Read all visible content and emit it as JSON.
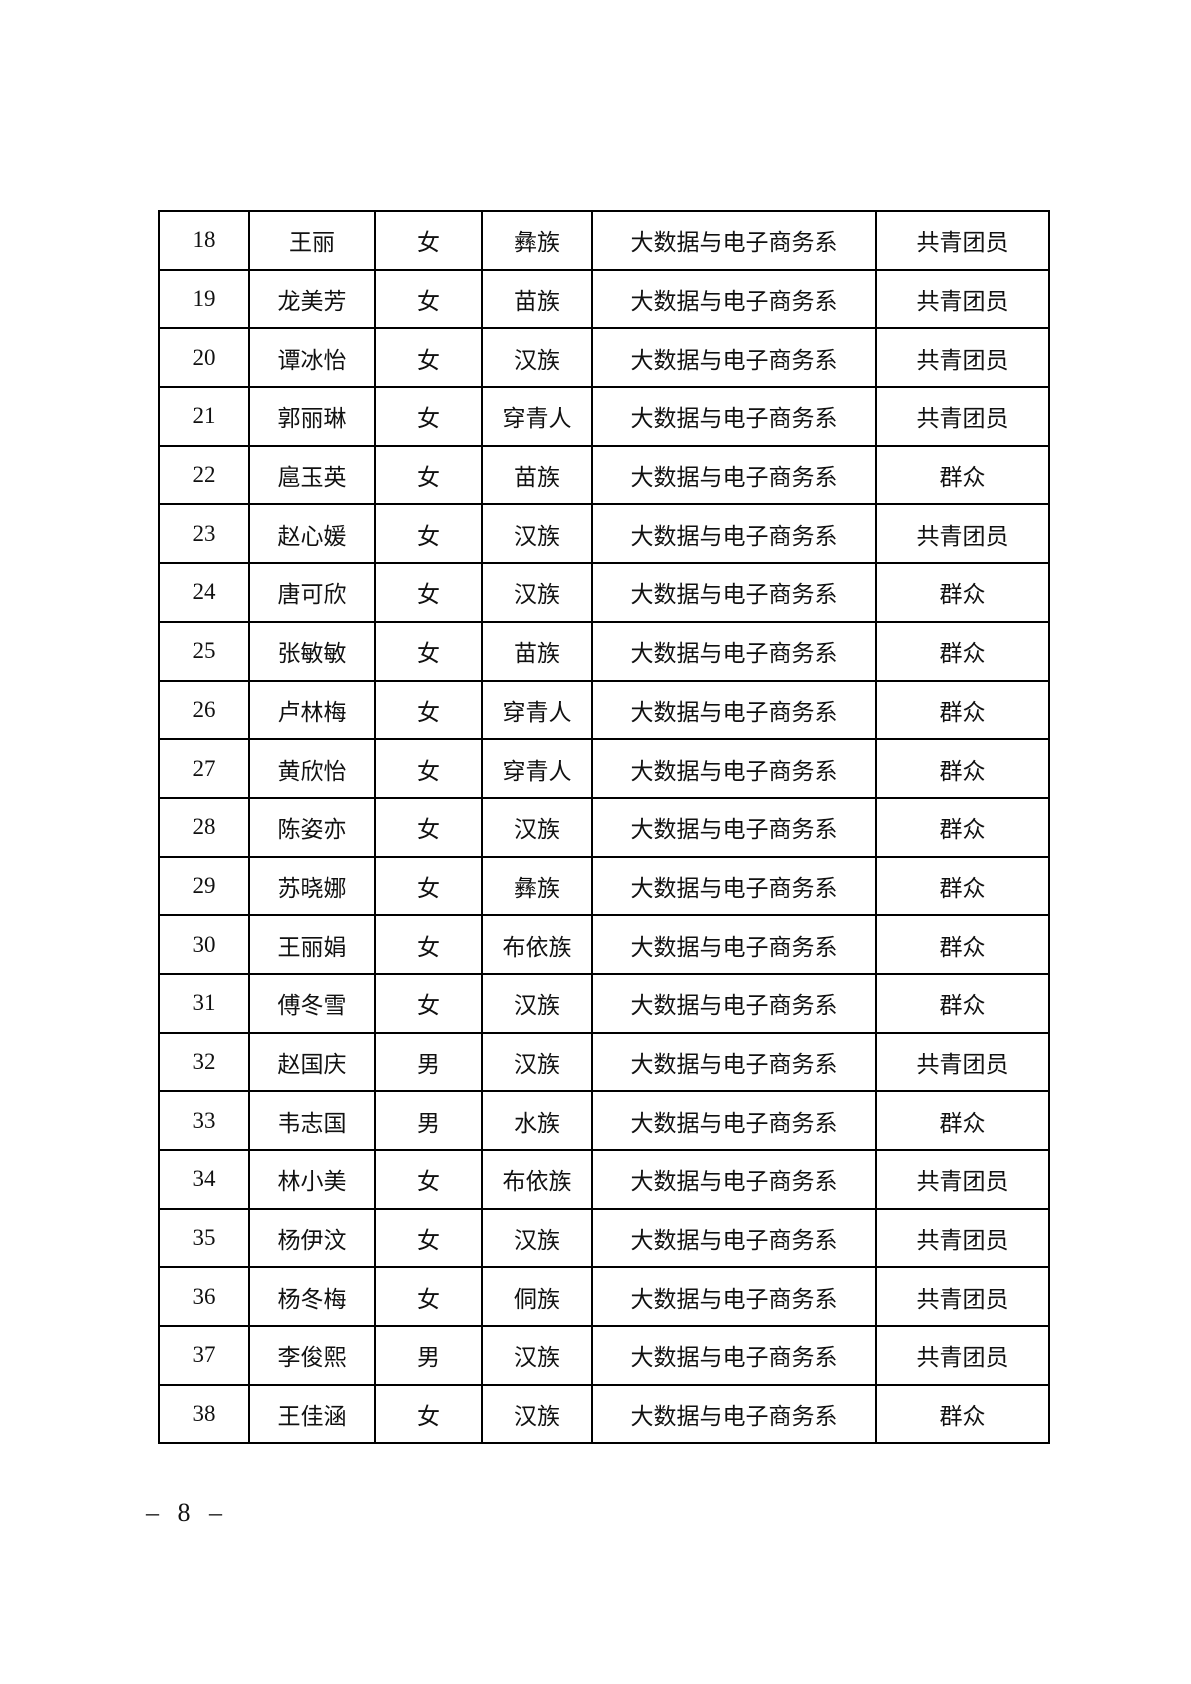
{
  "document": {
    "footer": {
      "page_number": "– 8 –"
    },
    "table": {
      "rows": [
        {
          "number": "18",
          "name": "王丽",
          "gender": "女",
          "ethnicity": "彝族",
          "department": "大数据与电子商务系",
          "political_status": "共青团员"
        },
        {
          "number": "19",
          "name": "龙美芳",
          "gender": "女",
          "ethnicity": "苗族",
          "department": "大数据与电子商务系",
          "political_status": "共青团员"
        },
        {
          "number": "20",
          "name": "谭冰怡",
          "gender": "女",
          "ethnicity": "汉族",
          "department": "大数据与电子商务系",
          "political_status": "共青团员"
        },
        {
          "number": "21",
          "name": "郭丽琳",
          "gender": "女",
          "ethnicity": "穿青人",
          "department": "大数据与电子商务系",
          "political_status": "共青团员"
        },
        {
          "number": "22",
          "name": "扈玉英",
          "gender": "女",
          "ethnicity": "苗族",
          "department": "大数据与电子商务系",
          "political_status": "群众"
        },
        {
          "number": "23",
          "name": "赵心媛",
          "gender": "女",
          "ethnicity": "汉族",
          "department": "大数据与电子商务系",
          "political_status": "共青团员"
        },
        {
          "number": "24",
          "name": "唐可欣",
          "gender": "女",
          "ethnicity": "汉族",
          "department": "大数据与电子商务系",
          "political_status": "群众"
        },
        {
          "number": "25",
          "name": "张敏敏",
          "gender": "女",
          "ethnicity": "苗族",
          "department": "大数据与电子商务系",
          "political_status": "群众"
        },
        {
          "number": "26",
          "name": "卢林梅",
          "gender": "女",
          "ethnicity": "穿青人",
          "department": "大数据与电子商务系",
          "political_status": "群众"
        },
        {
          "number": "27",
          "name": "黄欣怡",
          "gender": "女",
          "ethnicity": "穿青人",
          "department": "大数据与电子商务系",
          "political_status": "群众"
        },
        {
          "number": "28",
          "name": "陈姿亦",
          "gender": "女",
          "ethnicity": "汉族",
          "department": "大数据与电子商务系",
          "political_status": "群众"
        },
        {
          "number": "29",
          "name": "苏晓娜",
          "gender": "女",
          "ethnicity": "彝族",
          "department": "大数据与电子商务系",
          "political_status": "群众"
        },
        {
          "number": "30",
          "name": "王丽娟",
          "gender": "女",
          "ethnicity": "布依族",
          "department": "大数据与电子商务系",
          "political_status": "群众"
        },
        {
          "number": "31",
          "name": "傅冬雪",
          "gender": "女",
          "ethnicity": "汉族",
          "department": "大数据与电子商务系",
          "political_status": "群众"
        },
        {
          "number": "32",
          "name": "赵国庆",
          "gender": "男",
          "ethnicity": "汉族",
          "department": "大数据与电子商务系",
          "political_status": "共青团员"
        },
        {
          "number": "33",
          "name": "韦志国",
          "gender": "男",
          "ethnicity": "水族",
          "department": "大数据与电子商务系",
          "political_status": "群众"
        },
        {
          "number": "34",
          "name": "林小美",
          "gender": "女",
          "ethnicity": "布依族",
          "department": "大数据与电子商务系",
          "political_status": "共青团员"
        },
        {
          "number": "35",
          "name": "杨伊汶",
          "gender": "女",
          "ethnicity": "汉族",
          "department": "大数据与电子商务系",
          "political_status": "共青团员"
        },
        {
          "number": "36",
          "name": "杨冬梅",
          "gender": "女",
          "ethnicity": "侗族",
          "department": "大数据与电子商务系",
          "political_status": "共青团员"
        },
        {
          "number": "37",
          "name": "李俊熙",
          "gender": "男",
          "ethnicity": "汉族",
          "department": "大数据与电子商务系",
          "political_status": "共青团员"
        },
        {
          "number": "38",
          "name": "王佳涵",
          "gender": "女",
          "ethnicity": "汉族",
          "department": "大数据与电子商务系",
          "political_status": "群众"
        }
      ]
    }
  }
}
